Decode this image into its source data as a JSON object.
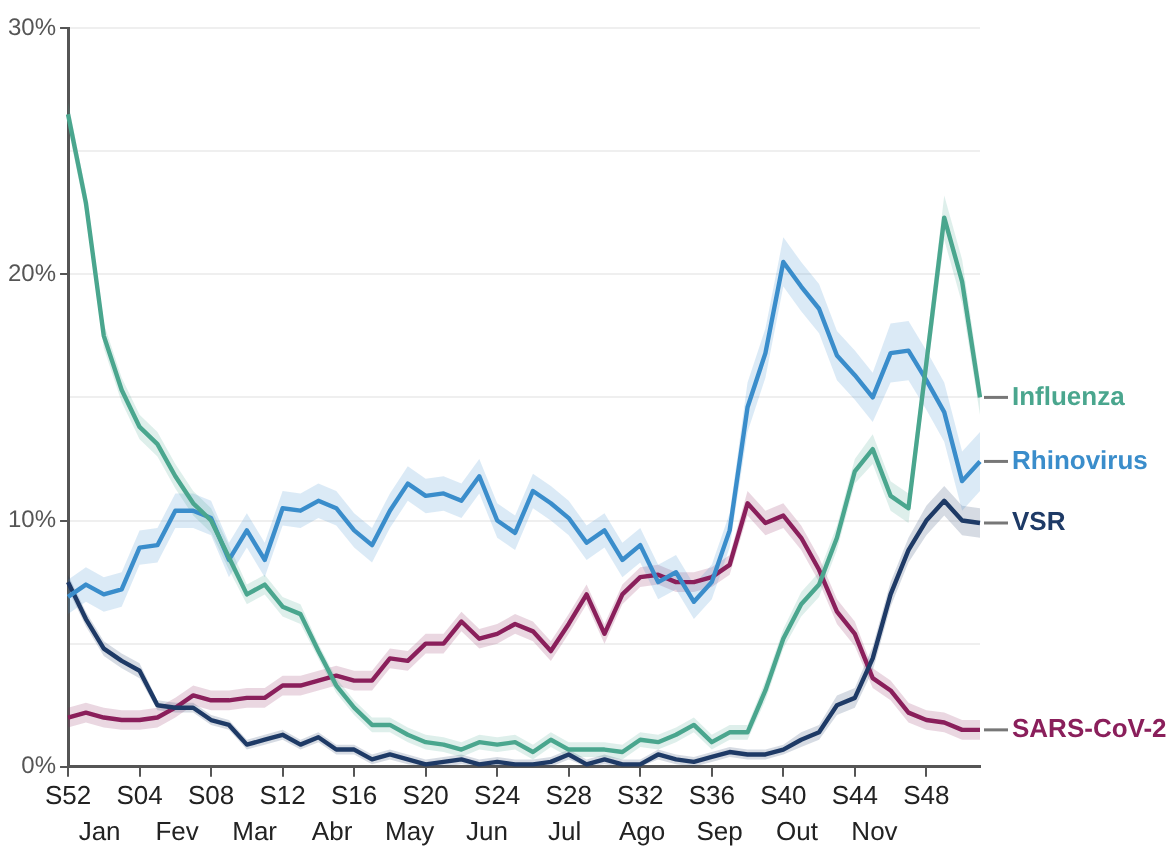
{
  "chart_data": {
    "type": "line",
    "categories": [
      "S52",
      null,
      null,
      null,
      "S04",
      null,
      null,
      null,
      "S08",
      null,
      null,
      null,
      "S12",
      null,
      null,
      null,
      "S16",
      null,
      null,
      null,
      "S20",
      null,
      null,
      null,
      "S24",
      null,
      null,
      null,
      "S28",
      null,
      null,
      null,
      "S32",
      null,
      null,
      null,
      "S36",
      null,
      null,
      null,
      "S40",
      null,
      null,
      null,
      "S44",
      null,
      null,
      null,
      "S48",
      null,
      null,
      null
    ],
    "annotations": [
      "Jan",
      "Fev",
      "Mar",
      "Abr",
      "May",
      "Jun",
      "Jul",
      "Ago",
      "Sep",
      "Out",
      "Nov"
    ],
    "ylim": [
      0,
      30
    ],
    "yticks": [
      {
        "value": 0,
        "label": "0%"
      },
      {
        "value": 5,
        "label": null
      },
      {
        "value": 10,
        "label": "10%"
      },
      {
        "value": 15,
        "label": null
      },
      {
        "value": 20,
        "label": "20%"
      },
      {
        "value": 25,
        "label": null
      },
      {
        "value": 30,
        "label": "30%"
      }
    ],
    "grid": "y",
    "line_style": "solid",
    "marker": "none",
    "series": [
      {
        "name": "Influenza",
        "color": "#4aa68e",
        "values": [
          26.5,
          22.9,
          17.5,
          15.3,
          13.8,
          13.1,
          11.8,
          10.7,
          10.0,
          8.5,
          7.0,
          7.4,
          6.5,
          6.2,
          4.7,
          3.3,
          2.4,
          1.7,
          1.7,
          1.3,
          1.0,
          0.9,
          0.7,
          1.0,
          0.9,
          1.0,
          0.6,
          1.1,
          0.7,
          0.7,
          0.7,
          0.6,
          1.1,
          1.0,
          1.3,
          1.7,
          1.0,
          1.4,
          1.4,
          3.1,
          5.2,
          6.6,
          7.4,
          9.3,
          12.0,
          12.9,
          11.0,
          10.5,
          16.4,
          22.3,
          19.7,
          15.0
        ],
        "lower": [
          26.0,
          22.4,
          17.0,
          14.8,
          13.3,
          12.6,
          11.3,
          10.2,
          9.5,
          8.0,
          6.6,
          7.0,
          6.1,
          5.8,
          4.4,
          3.0,
          2.1,
          1.4,
          1.4,
          1.0,
          0.7,
          0.6,
          0.4,
          0.7,
          0.6,
          0.7,
          0.3,
          0.8,
          0.4,
          0.4,
          0.4,
          0.3,
          0.8,
          0.7,
          1.0,
          1.4,
          0.7,
          1.1,
          1.1,
          2.7,
          4.8,
          6.1,
          6.9,
          8.8,
          11.5,
          12.3,
          10.4,
          9.9,
          15.7,
          21.4,
          18.8,
          14.3
        ],
        "upper": [
          27.0,
          23.4,
          18.0,
          15.8,
          14.3,
          13.6,
          12.3,
          11.2,
          10.5,
          9.0,
          7.4,
          7.8,
          6.9,
          6.6,
          5.0,
          3.6,
          2.7,
          2.0,
          2.0,
          1.6,
          1.3,
          1.2,
          1.0,
          1.3,
          1.2,
          1.3,
          0.9,
          1.4,
          1.0,
          1.0,
          1.0,
          0.9,
          1.4,
          1.3,
          1.6,
          2.0,
          1.3,
          1.7,
          1.7,
          3.5,
          5.6,
          7.1,
          7.9,
          9.8,
          12.5,
          13.5,
          11.6,
          11.1,
          17.1,
          23.2,
          20.6,
          15.7
        ]
      },
      {
        "name": "Rhinovirus",
        "color": "#3a8dcb",
        "values": [
          6.9,
          7.4,
          7.0,
          7.2,
          8.9,
          9.0,
          10.4,
          10.4,
          10.1,
          8.4,
          9.6,
          8.4,
          10.5,
          10.4,
          10.8,
          10.5,
          9.6,
          9.0,
          10.4,
          11.5,
          11.0,
          11.1,
          10.8,
          11.8,
          10.0,
          9.5,
          11.2,
          10.7,
          10.1,
          9.1,
          9.6,
          8.4,
          9.0,
          7.5,
          7.9,
          6.7,
          7.5,
          9.6,
          14.6,
          16.8,
          20.5,
          19.5,
          18.6,
          16.7,
          15.9,
          15.0,
          16.8,
          16.9,
          15.7,
          14.4,
          11.6,
          12.4
        ],
        "lower": [
          6.2,
          6.7,
          6.3,
          6.5,
          8.2,
          8.3,
          9.7,
          9.7,
          9.4,
          7.7,
          8.9,
          7.7,
          9.8,
          9.7,
          10.1,
          9.8,
          8.9,
          8.3,
          9.7,
          10.8,
          10.3,
          10.4,
          10.1,
          11.1,
          9.3,
          8.8,
          10.5,
          10.0,
          9.4,
          8.4,
          8.9,
          7.7,
          8.3,
          6.8,
          7.2,
          6.0,
          6.8,
          8.9,
          13.6,
          15.8,
          19.5,
          18.5,
          17.6,
          15.7,
          14.9,
          14.0,
          15.6,
          15.7,
          14.5,
          13.2,
          10.4,
          11.2
        ],
        "upper": [
          7.6,
          8.1,
          7.7,
          7.9,
          9.6,
          9.7,
          11.1,
          11.1,
          10.8,
          9.1,
          10.3,
          9.1,
          11.2,
          11.1,
          11.5,
          11.2,
          10.3,
          9.7,
          11.1,
          12.2,
          11.7,
          11.8,
          11.5,
          12.5,
          10.7,
          10.2,
          11.9,
          11.4,
          10.8,
          9.8,
          10.3,
          9.1,
          9.7,
          8.2,
          8.6,
          7.4,
          8.2,
          10.3,
          15.6,
          17.8,
          21.5,
          20.5,
          19.6,
          17.7,
          16.9,
          16.0,
          18.0,
          18.1,
          16.9,
          15.6,
          12.8,
          13.6
        ]
      },
      {
        "name": "VSR",
        "color": "#1e3a66",
        "values": [
          7.5,
          6.0,
          4.8,
          4.3,
          3.9,
          2.5,
          2.4,
          2.4,
          1.9,
          1.7,
          0.9,
          1.1,
          1.3,
          0.9,
          1.2,
          0.7,
          0.7,
          0.3,
          0.5,
          0.3,
          0.1,
          0.2,
          0.3,
          0.1,
          0.2,
          0.1,
          0.1,
          0.2,
          0.5,
          0.1,
          0.3,
          0.1,
          0.1,
          0.5,
          0.3,
          0.2,
          0.4,
          0.6,
          0.5,
          0.5,
          0.7,
          1.1,
          1.4,
          2.5,
          2.8,
          4.4,
          7.0,
          8.8,
          10.0,
          10.8,
          10.0,
          9.9
        ],
        "lower": [
          7.2,
          5.7,
          4.5,
          4.0,
          3.6,
          2.3,
          2.2,
          2.2,
          1.7,
          1.5,
          0.7,
          0.9,
          1.1,
          0.7,
          1.0,
          0.5,
          0.5,
          0.1,
          0.3,
          0.1,
          0.0,
          0.0,
          0.1,
          0.0,
          0.0,
          0.0,
          0.0,
          0.0,
          0.3,
          0.0,
          0.1,
          0.0,
          0.0,
          0.3,
          0.1,
          0.0,
          0.2,
          0.4,
          0.3,
          0.3,
          0.5,
          0.8,
          1.1,
          2.1,
          2.4,
          3.9,
          6.5,
          8.3,
          9.4,
          10.2,
          9.4,
          9.3
        ],
        "upper": [
          7.8,
          6.3,
          5.1,
          4.6,
          4.2,
          2.7,
          2.6,
          2.6,
          2.1,
          1.9,
          1.1,
          1.3,
          1.5,
          1.1,
          1.4,
          0.9,
          0.9,
          0.5,
          0.7,
          0.5,
          0.3,
          0.4,
          0.5,
          0.3,
          0.4,
          0.3,
          0.3,
          0.4,
          0.7,
          0.3,
          0.5,
          0.3,
          0.3,
          0.7,
          0.5,
          0.4,
          0.6,
          0.8,
          0.7,
          0.7,
          0.9,
          1.4,
          1.7,
          2.9,
          3.2,
          4.9,
          7.5,
          9.3,
          10.6,
          11.4,
          10.6,
          10.5
        ]
      },
      {
        "name": "SARS-CoV-2",
        "color": "#8a1f5b",
        "values": [
          2.0,
          2.2,
          2.0,
          1.9,
          1.9,
          2.0,
          2.4,
          2.9,
          2.7,
          2.7,
          2.8,
          2.8,
          3.3,
          3.3,
          3.5,
          3.7,
          3.5,
          3.5,
          4.4,
          4.3,
          5.0,
          5.0,
          5.9,
          5.2,
          5.4,
          5.8,
          5.5,
          4.7,
          5.8,
          7.0,
          5.4,
          7.0,
          7.7,
          7.8,
          7.5,
          7.5,
          7.7,
          8.2,
          10.7,
          9.9,
          10.2,
          9.3,
          8.0,
          6.3,
          5.4,
          3.6,
          3.1,
          2.2,
          1.9,
          1.8,
          1.5,
          1.5
        ],
        "lower": [
          1.6,
          1.8,
          1.6,
          1.5,
          1.5,
          1.6,
          2.0,
          2.5,
          2.3,
          2.3,
          2.4,
          2.4,
          2.9,
          2.9,
          3.1,
          3.3,
          3.1,
          3.1,
          4.0,
          3.9,
          4.6,
          4.6,
          5.5,
          4.8,
          5.0,
          5.4,
          5.1,
          4.3,
          5.4,
          6.6,
          5.0,
          6.6,
          7.3,
          7.4,
          7.1,
          7.1,
          7.3,
          7.8,
          10.2,
          9.4,
          9.7,
          8.8,
          7.5,
          5.8,
          4.9,
          3.2,
          2.7,
          1.8,
          1.5,
          1.4,
          1.1,
          1.1
        ],
        "upper": [
          2.4,
          2.6,
          2.4,
          2.3,
          2.3,
          2.4,
          2.8,
          3.3,
          3.1,
          3.1,
          3.2,
          3.2,
          3.7,
          3.7,
          3.9,
          4.1,
          3.9,
          3.9,
          4.8,
          4.7,
          5.4,
          5.4,
          6.3,
          5.6,
          5.8,
          6.2,
          5.9,
          5.1,
          6.2,
          7.4,
          5.8,
          7.4,
          8.1,
          8.2,
          7.9,
          7.9,
          8.1,
          8.6,
          11.2,
          10.4,
          10.7,
          9.8,
          8.5,
          6.8,
          5.9,
          4.0,
          3.5,
          2.6,
          2.3,
          2.2,
          1.9,
          1.9
        ]
      }
    ]
  }
}
